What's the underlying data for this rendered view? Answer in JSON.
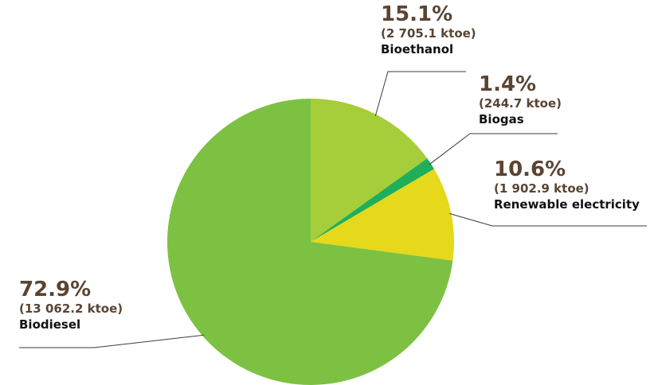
{
  "chart_data": {
    "type": "pie",
    "start_angle_deg": 0,
    "direction": "clockwise",
    "slices": [
      {
        "name": "Bioethanol",
        "percent": 15.1,
        "pct_label": "15.1%",
        "value_label": "(2 705.1 ktoe)",
        "value_ktoe": 2705.1,
        "color": "#a6cd3a"
      },
      {
        "name": "Biogas",
        "percent": 1.4,
        "pct_label": "1.4%",
        "value_label": "(244.7 ktoe)",
        "value_ktoe": 244.7,
        "color": "#1fae5a"
      },
      {
        "name": "Renewable electricity",
        "percent": 10.6,
        "pct_label": "10.6%",
        "value_label": "(1 902.9 ktoe)",
        "value_ktoe": 1902.9,
        "color": "#e6d81a"
      },
      {
        "name": "Biodiesel",
        "percent": 72.9,
        "pct_label": "72.9%",
        "value_label": "(13 062.2 ktoe)",
        "value_ktoe": 13062.2,
        "color": "#7dc142"
      }
    ]
  }
}
